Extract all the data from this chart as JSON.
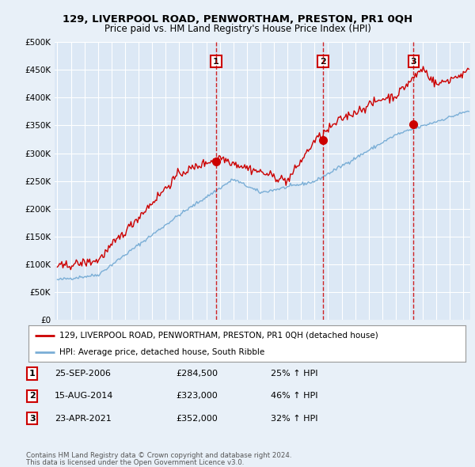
{
  "title1": "129, LIVERPOOL ROAD, PENWORTHAM, PRESTON, PR1 0QH",
  "title2": "Price paid vs. HM Land Registry's House Price Index (HPI)",
  "ylabel_ticks": [
    "£0",
    "£50K",
    "£100K",
    "£150K",
    "£200K",
    "£250K",
    "£300K",
    "£350K",
    "£400K",
    "£450K",
    "£500K"
  ],
  "ytick_vals": [
    0,
    50000,
    100000,
    150000,
    200000,
    250000,
    300000,
    350000,
    400000,
    450000,
    500000
  ],
  "xlim_start": 1994.8,
  "xlim_end": 2025.5,
  "ylim": [
    0,
    500000
  ],
  "background_color": "#e8f0f8",
  "plot_bg": "#dce8f5",
  "grid_color": "#ffffff",
  "sale_dates": [
    2006.73,
    2014.62,
    2021.31
  ],
  "sale_prices": [
    284500,
    323000,
    352000
  ],
  "sale_labels": [
    "1",
    "2",
    "3"
  ],
  "sale_date_strs": [
    "25-SEP-2006",
    "15-AUG-2014",
    "23-APR-2021"
  ],
  "sale_price_strs": [
    "£284,500",
    "£323,000",
    "£352,000"
  ],
  "sale_hpi_strs": [
    "25% ↑ HPI",
    "46% ↑ HPI",
    "32% ↑ HPI"
  ],
  "red_line_color": "#cc0000",
  "blue_line_color": "#7aaed6",
  "legend_label_red": "129, LIVERPOOL ROAD, PENWORTHAM, PRESTON, PR1 0QH (detached house)",
  "legend_label_blue": "HPI: Average price, detached house, South Ribble",
  "footer1": "Contains HM Land Registry data © Crown copyright and database right 2024.",
  "footer2": "This data is licensed under the Open Government Licence v3.0.",
  "dashed_color": "#cc0000",
  "box_color": "#cc0000"
}
